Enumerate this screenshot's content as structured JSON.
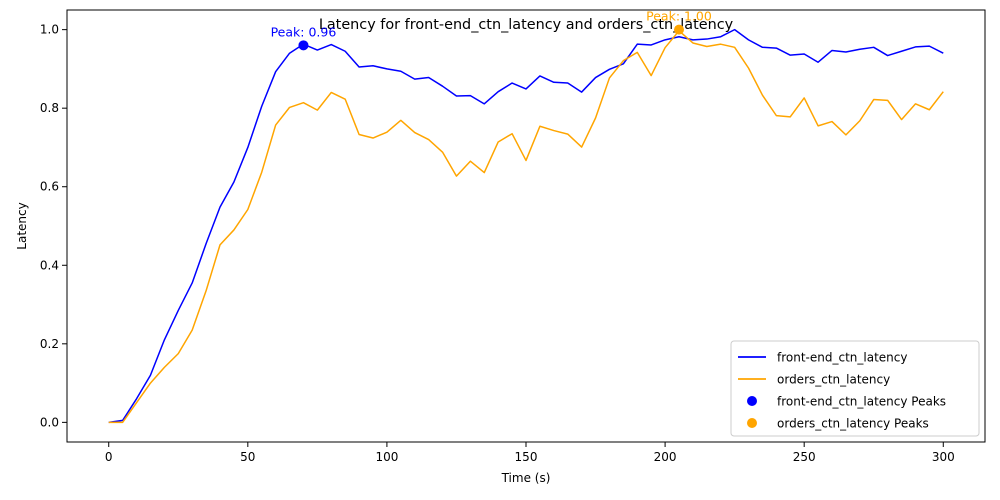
{
  "chart_data": {
    "type": "line",
    "title": "Latency for front-end_ctn_latency and orders_ctn_latency",
    "xlabel": "Time (s)",
    "ylabel": "Latency",
    "xlim": [
      -15,
      315
    ],
    "ylim": [
      -0.05,
      1.05
    ],
    "xticks": [
      0,
      50,
      100,
      150,
      200,
      250,
      300
    ],
    "yticks": [
      0.0,
      0.2,
      0.4,
      0.6,
      0.8,
      1.0
    ],
    "xtick_labels": [
      "0",
      "50",
      "100",
      "150",
      "200",
      "250",
      "300"
    ],
    "ytick_labels": [
      "0.0",
      "0.2",
      "0.4",
      "0.6",
      "0.8",
      "1.0"
    ],
    "grid": false,
    "legend_position": "lower-right",
    "x": [
      0,
      5,
      10,
      15,
      20,
      25,
      30,
      35,
      40,
      45,
      50,
      55,
      60,
      65,
      70,
      75,
      80,
      85,
      90,
      95,
      100,
      105,
      110,
      115,
      120,
      125,
      130,
      135,
      140,
      145,
      150,
      155,
      160,
      165,
      170,
      175,
      180,
      185,
      190,
      195,
      200,
      205,
      210,
      215,
      220,
      225,
      230,
      235,
      240,
      245,
      250,
      255,
      260,
      265,
      270,
      275,
      280,
      285,
      290,
      295,
      300
    ],
    "series": [
      {
        "name": "front-end_ctn_latency",
        "color": "#0000ff",
        "values": [
          0.0,
          0.005,
          0.06,
          0.12,
          0.21,
          0.285,
          0.355,
          0.455,
          0.548,
          0.612,
          0.7,
          0.805,
          0.893,
          0.94,
          0.963,
          0.948,
          0.962,
          0.945,
          0.905,
          0.908,
          0.9,
          0.894,
          0.874,
          0.878,
          0.856,
          0.831,
          0.832,
          0.811,
          0.842,
          0.864,
          0.849,
          0.882,
          0.866,
          0.864,
          0.841,
          0.878,
          0.899,
          0.913,
          0.963,
          0.961,
          0.974,
          0.982,
          0.974,
          0.976,
          0.982,
          1.0,
          0.974,
          0.955,
          0.953,
          0.935,
          0.938,
          0.917,
          0.947,
          0.943,
          0.95,
          0.955,
          0.934,
          0.945,
          0.956,
          0.958,
          0.94
        ],
        "peak": {
          "x": 70,
          "y": 0.96,
          "label": "Peak: 0.96"
        }
      },
      {
        "name": "orders_ctn_latency",
        "color": "#ffa500",
        "values": [
          0.0,
          0.0,
          0.05,
          0.1,
          0.14,
          0.175,
          0.235,
          0.335,
          0.452,
          0.49,
          0.542,
          0.637,
          0.757,
          0.802,
          0.814,
          0.795,
          0.84,
          0.823,
          0.733,
          0.724,
          0.739,
          0.769,
          0.738,
          0.72,
          0.688,
          0.627,
          0.665,
          0.636,
          0.714,
          0.735,
          0.667,
          0.754,
          0.743,
          0.734,
          0.701,
          0.775,
          0.877,
          0.921,
          0.942,
          0.883,
          0.954,
          0.997,
          0.966,
          0.957,
          0.963,
          0.955,
          0.902,
          0.833,
          0.781,
          0.778,
          0.826,
          0.755,
          0.766,
          0.732,
          0.768,
          0.822,
          0.82,
          0.771,
          0.811,
          0.796,
          0.842
        ],
        "peak": {
          "x": 205,
          "y": 1.0,
          "label": "Peak: 1.00"
        }
      }
    ],
    "legend": [
      {
        "label": "front-end_ctn_latency",
        "kind": "line",
        "color": "#0000ff"
      },
      {
        "label": "orders_ctn_latency",
        "kind": "line",
        "color": "#ffa500"
      },
      {
        "label": "front-end_ctn_latency Peaks",
        "kind": "marker",
        "color": "#0000ff"
      },
      {
        "label": "orders_ctn_latency Peaks",
        "kind": "marker",
        "color": "#ffa500"
      }
    ]
  }
}
